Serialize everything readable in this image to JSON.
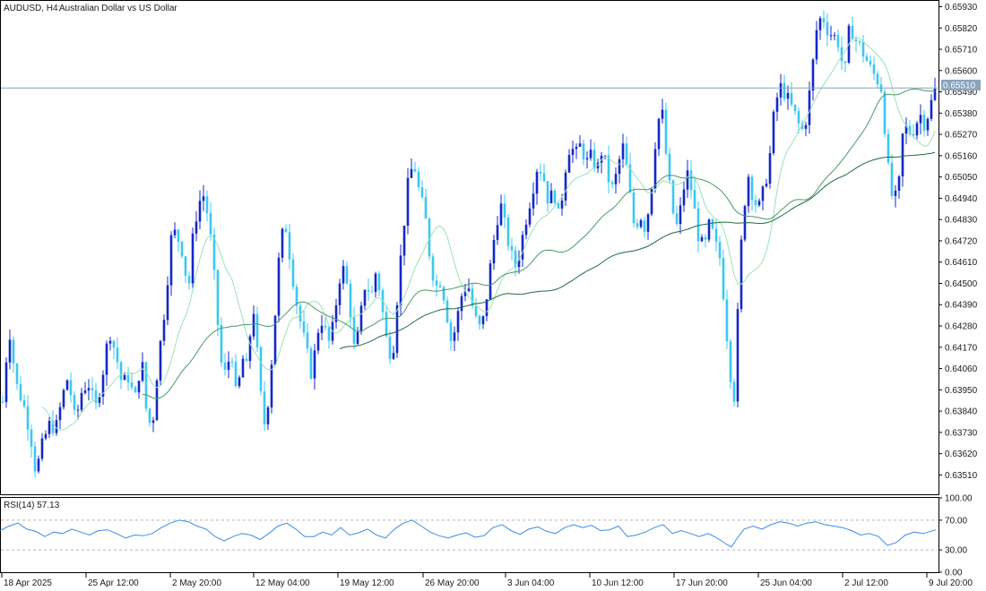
{
  "header": {
    "symbol": "AUDUSD, H4:",
    "description": "Australian Dollar vs US Dollar"
  },
  "indicator": {
    "label": "RSI(14) 57.13",
    "levels": [
      70,
      30
    ],
    "ticks": [
      "100.00",
      "70.00",
      "30.00",
      "0.00"
    ]
  },
  "price_tag": "0.65510",
  "colors": {
    "bull_candle": "#1428c8",
    "bear_candle": "#3cc8f0",
    "ma_fast": "#9be2b4",
    "ma_mid": "#4a9a66",
    "ma_slow": "#1f6b3c",
    "rsi_line": "#3c8ce6",
    "price_line": "#8aa4bc"
  },
  "chart_data": {
    "type": "candlestick",
    "symbol": "AUDUSD",
    "timeframe": "H4",
    "y_ticks": [
      "0.65930",
      "0.65820",
      "0.65710",
      "0.65600",
      "0.65490",
      "0.65380",
      "0.65270",
      "0.65160",
      "0.65050",
      "0.64940",
      "0.64830",
      "0.64720",
      "0.64610",
      "0.64500",
      "0.64390",
      "0.64280",
      "0.64170",
      "0.64060",
      "0.63950",
      "0.63840",
      "0.63730",
      "0.63620",
      "0.63510"
    ],
    "ylim": [
      0.6341,
      0.6596
    ],
    "x_ticks": [
      "18 Apr 2025",
      "25 Apr 12:00",
      "2 May 20:00",
      "12 May 04:00",
      "19 May 12:00",
      "26 May 20:00",
      "3 Jun 04:00",
      "10 Jun 12:00",
      "17 Jun 20:00",
      "25 Jun 04:00",
      "2 Jul 12:00",
      "9 Jul 20:00"
    ],
    "current_price": 0.6551,
    "close_path": [
      [
        0,
        0.6372
      ],
      [
        10,
        0.6428
      ],
      [
        18,
        0.6398
      ],
      [
        26,
        0.6388
      ],
      [
        34,
        0.6372
      ],
      [
        40,
        0.6352
      ],
      [
        48,
        0.6368
      ],
      [
        56,
        0.6378
      ],
      [
        62,
        0.6374
      ],
      [
        70,
        0.6392
      ],
      [
        76,
        0.6402
      ],
      [
        84,
        0.6378
      ],
      [
        92,
        0.6396
      ],
      [
        100,
        0.6398
      ],
      [
        106,
        0.6384
      ],
      [
        114,
        0.6402
      ],
      [
        122,
        0.6426
      ],
      [
        130,
        0.6412
      ],
      [
        136,
        0.6398
      ],
      [
        144,
        0.6402
      ],
      [
        150,
        0.6388
      ],
      [
        158,
        0.6412
      ],
      [
        164,
        0.638
      ],
      [
        170,
        0.6376
      ],
      [
        176,
        0.6408
      ],
      [
        184,
        0.6438
      ],
      [
        192,
        0.6478
      ],
      [
        198,
        0.6474
      ],
      [
        204,
        0.6466
      ],
      [
        210,
        0.6445
      ],
      [
        216,
        0.6478
      ],
      [
        222,
        0.6492
      ],
      [
        228,
        0.6496
      ],
      [
        234,
        0.6478
      ],
      [
        240,
        0.6448
      ],
      [
        246,
        0.641
      ],
      [
        252,
        0.6402
      ],
      [
        258,
        0.6418
      ],
      [
        264,
        0.6388
      ],
      [
        270,
        0.6412
      ],
      [
        276,
        0.6405
      ],
      [
        282,
        0.6442
      ],
      [
        288,
        0.6408
      ],
      [
        294,
        0.6375
      ],
      [
        300,
        0.6392
      ],
      [
        306,
        0.6428
      ],
      [
        312,
        0.6468
      ],
      [
        318,
        0.6482
      ],
      [
        324,
        0.6462
      ],
      [
        330,
        0.6442
      ],
      [
        336,
        0.6428
      ],
      [
        342,
        0.6415
      ],
      [
        348,
        0.6402
      ],
      [
        354,
        0.6425
      ],
      [
        360,
        0.6432
      ],
      [
        366,
        0.6418
      ],
      [
        372,
        0.6428
      ],
      [
        378,
        0.6452
      ],
      [
        384,
        0.6458
      ],
      [
        390,
        0.644
      ],
      [
        396,
        0.6412
      ],
      [
        402,
        0.6432
      ],
      [
        408,
        0.6452
      ],
      [
        414,
        0.6442
      ],
      [
        420,
        0.6458
      ],
      [
        426,
        0.6438
      ],
      [
        432,
        0.6418
      ],
      [
        438,
        0.6412
      ],
      [
        444,
        0.6448
      ],
      [
        450,
        0.6478
      ],
      [
        456,
        0.6505
      ],
      [
        462,
        0.6512
      ],
      [
        468,
        0.6496
      ],
      [
        474,
        0.6486
      ],
      [
        480,
        0.6462
      ],
      [
        486,
        0.6448
      ],
      [
        492,
        0.6452
      ],
      [
        498,
        0.6436
      ],
      [
        504,
        0.6418
      ],
      [
        510,
        0.6432
      ],
      [
        516,
        0.6446
      ],
      [
        522,
        0.645
      ],
      [
        528,
        0.6436
      ],
      [
        534,
        0.6426
      ],
      [
        540,
        0.6432
      ],
      [
        546,
        0.6455
      ],
      [
        552,
        0.6476
      ],
      [
        558,
        0.6492
      ],
      [
        564,
        0.6478
      ],
      [
        570,
        0.6465
      ],
      [
        576,
        0.6458
      ],
      [
        582,
        0.6472
      ],
      [
        588,
        0.6486
      ],
      [
        594,
        0.6498
      ],
      [
        600,
        0.6512
      ],
      [
        606,
        0.6506
      ],
      [
        612,
        0.6492
      ],
      [
        618,
        0.6498
      ],
      [
        624,
        0.6482
      ],
      [
        630,
        0.6508
      ],
      [
        636,
        0.6522
      ],
      [
        642,
        0.6516
      ],
      [
        648,
        0.6522
      ],
      [
        654,
        0.6512
      ],
      [
        660,
        0.6516
      ],
      [
        666,
        0.6508
      ],
      [
        672,
        0.652
      ],
      [
        678,
        0.6505
      ],
      [
        684,
        0.6498
      ],
      [
        690,
        0.6512
      ],
      [
        696,
        0.6522
      ],
      [
        702,
        0.6498
      ],
      [
        708,
        0.6478
      ],
      [
        714,
        0.6486
      ],
      [
        720,
        0.6478
      ],
      [
        726,
        0.6496
      ],
      [
        732,
        0.6528
      ],
      [
        738,
        0.6542
      ],
      [
        744,
        0.6512
      ],
      [
        750,
        0.6488
      ],
      [
        756,
        0.6478
      ],
      [
        762,
        0.6498
      ],
      [
        768,
        0.6508
      ],
      [
        774,
        0.649
      ],
      [
        780,
        0.6472
      ],
      [
        786,
        0.6468
      ],
      [
        792,
        0.6482
      ],
      [
        798,
        0.647
      ],
      [
        804,
        0.6462
      ],
      [
        810,
        0.6428
      ],
      [
        816,
        0.6398
      ],
      [
        820,
        0.639
      ],
      [
        824,
        0.6448
      ],
      [
        828,
        0.6478
      ],
      [
        834,
        0.6508
      ],
      [
        840,
        0.6495
      ],
      [
        846,
        0.6488
      ],
      [
        852,
        0.6498
      ],
      [
        858,
        0.6512
      ],
      [
        864,
        0.654
      ],
      [
        870,
        0.6552
      ],
      [
        876,
        0.6548
      ],
      [
        882,
        0.6542
      ],
      [
        888,
        0.6536
      ],
      [
        894,
        0.6528
      ],
      [
        900,
        0.6536
      ],
      [
        906,
        0.656
      ],
      [
        912,
        0.6585
      ],
      [
        918,
        0.6588
      ],
      [
        924,
        0.658
      ],
      [
        930,
        0.6578
      ],
      [
        936,
        0.6574
      ],
      [
        942,
        0.6556
      ],
      [
        948,
        0.6584
      ],
      [
        954,
        0.6576
      ],
      [
        960,
        0.6572
      ],
      [
        966,
        0.6566
      ],
      [
        972,
        0.656
      ],
      [
        978,
        0.6556
      ],
      [
        984,
        0.655
      ],
      [
        990,
        0.6512
      ],
      [
        996,
        0.6492
      ],
      [
        1002,
        0.6496
      ],
      [
        1008,
        0.6532
      ],
      [
        1014,
        0.6528
      ],
      [
        1020,
        0.653
      ],
      [
        1026,
        0.6538
      ],
      [
        1032,
        0.6532
      ],
      [
        1038,
        0.6542
      ],
      [
        1044,
        0.6551
      ]
    ],
    "rsi": {
      "name": "RSI(14)",
      "last": 57.13,
      "levels": [
        70,
        30
      ],
      "ylim": [
        0,
        100
      ],
      "values": [
        [
          0,
          56
        ],
        [
          10,
          62
        ],
        [
          20,
          66
        ],
        [
          30,
          58
        ],
        [
          40,
          55
        ],
        [
          50,
          48
        ],
        [
          60,
          54
        ],
        [
          70,
          52
        ],
        [
          80,
          58
        ],
        [
          90,
          54
        ],
        [
          100,
          50
        ],
        [
          110,
          56
        ],
        [
          120,
          57
        ],
        [
          130,
          52
        ],
        [
          140,
          46
        ],
        [
          150,
          50
        ],
        [
          160,
          49
        ],
        [
          170,
          52
        ],
        [
          180,
          60
        ],
        [
          190,
          66
        ],
        [
          200,
          70
        ],
        [
          210,
          68
        ],
        [
          220,
          62
        ],
        [
          230,
          58
        ],
        [
          240,
          48
        ],
        [
          250,
          42
        ],
        [
          260,
          48
        ],
        [
          270,
          52
        ],
        [
          280,
          50
        ],
        [
          290,
          44
        ],
        [
          300,
          52
        ],
        [
          310,
          62
        ],
        [
          320,
          66
        ],
        [
          330,
          58
        ],
        [
          340,
          48
        ],
        [
          350,
          48
        ],
        [
          360,
          54
        ],
        [
          370,
          50
        ],
        [
          380,
          60
        ],
        [
          390,
          50
        ],
        [
          400,
          53
        ],
        [
          410,
          58
        ],
        [
          420,
          50
        ],
        [
          430,
          46
        ],
        [
          440,
          58
        ],
        [
          450,
          66
        ],
        [
          460,
          70
        ],
        [
          470,
          62
        ],
        [
          480,
          54
        ],
        [
          490,
          49
        ],
        [
          500,
          46
        ],
        [
          510,
          50
        ],
        [
          520,
          53
        ],
        [
          530,
          47
        ],
        [
          540,
          49
        ],
        [
          550,
          60
        ],
        [
          560,
          64
        ],
        [
          570,
          56
        ],
        [
          580,
          51
        ],
        [
          590,
          58
        ],
        [
          600,
          61
        ],
        [
          610,
          55
        ],
        [
          620,
          52
        ],
        [
          630,
          60
        ],
        [
          640,
          64
        ],
        [
          650,
          60
        ],
        [
          660,
          63
        ],
        [
          670,
          56
        ],
        [
          680,
          57
        ],
        [
          690,
          62
        ],
        [
          700,
          48
        ],
        [
          710,
          50
        ],
        [
          720,
          54
        ],
        [
          730,
          60
        ],
        [
          740,
          64
        ],
        [
          750,
          52
        ],
        [
          760,
          56
        ],
        [
          770,
          52
        ],
        [
          780,
          48
        ],
        [
          790,
          52
        ],
        [
          800,
          46
        ],
        [
          810,
          38
        ],
        [
          816,
          34
        ],
        [
          822,
          45
        ],
        [
          830,
          58
        ],
        [
          840,
          62
        ],
        [
          850,
          58
        ],
        [
          860,
          64
        ],
        [
          870,
          68
        ],
        [
          880,
          66
        ],
        [
          890,
          62
        ],
        [
          900,
          66
        ],
        [
          910,
          68
        ],
        [
          920,
          64
        ],
        [
          930,
          62
        ],
        [
          940,
          60
        ],
        [
          950,
          56
        ],
        [
          960,
          50
        ],
        [
          970,
          52
        ],
        [
          980,
          48
        ],
        [
          990,
          36
        ],
        [
          1000,
          40
        ],
        [
          1010,
          50
        ],
        [
          1020,
          54
        ],
        [
          1030,
          52
        ],
        [
          1044,
          57
        ]
      ]
    }
  }
}
